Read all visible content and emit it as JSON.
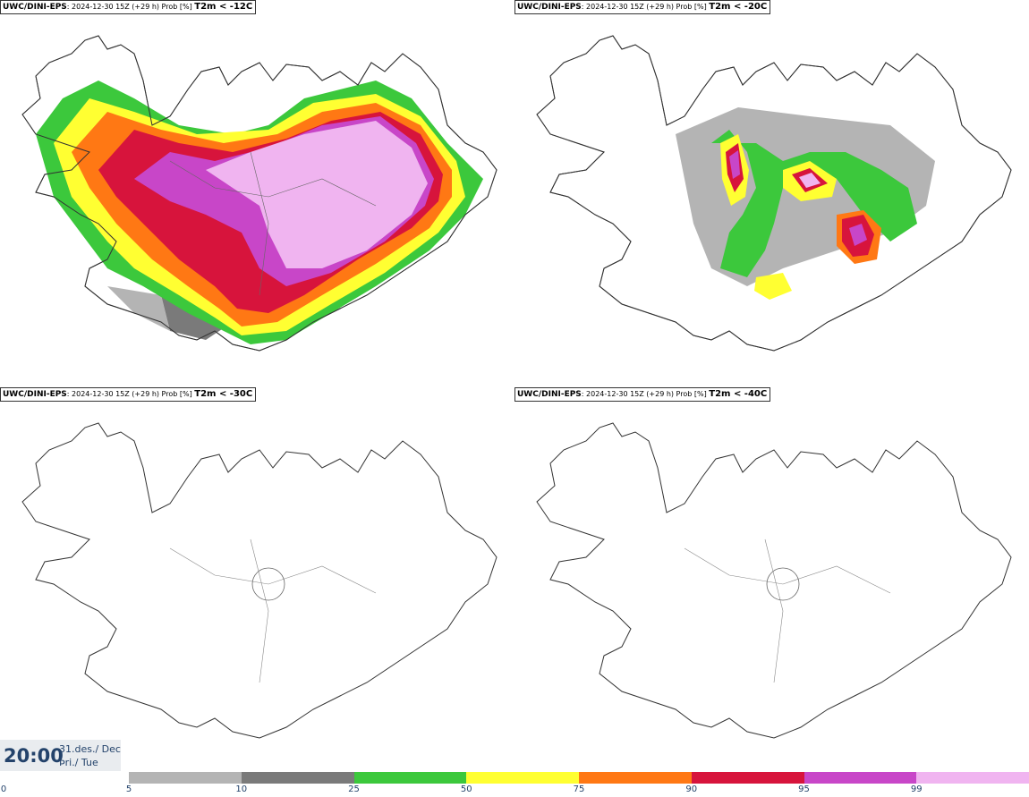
{
  "panels": [
    {
      "model": "UWC/DINI-EPS",
      "info": ": 2024-12-30 15Z (+29 h) Prob [%]",
      "threshold": "T2m < -12C"
    },
    {
      "model": "UWC/DINI-EPS",
      "info": ": 2024-12-30 15Z (+29 h) Prob [%]",
      "threshold": "T2m < -20C"
    },
    {
      "model": "UWC/DINI-EPS",
      "info": ": 2024-12-30 15Z (+29 h) Prob [%]",
      "threshold": "T2m < -30C"
    },
    {
      "model": "UWC/DINI-EPS",
      "info": ": 2024-12-30 15Z (+29 h) Prob [%]",
      "threshold": "T2m < -40C"
    }
  ],
  "time": {
    "hhmm": "20:00",
    "date": "31.des./ Dec",
    "day": "Þri./ Tue"
  },
  "colorbar": {
    "ticks": [
      "0",
      "5",
      "10",
      "25",
      "50",
      "75",
      "90",
      "95",
      "99"
    ],
    "colors": [
      "#b4b4b4",
      "#7a7a7a",
      "#3cc83c",
      "#ffff32",
      "#ff7814",
      "#d7143c",
      "#c846c8",
      "#f0b4f0"
    ]
  }
}
